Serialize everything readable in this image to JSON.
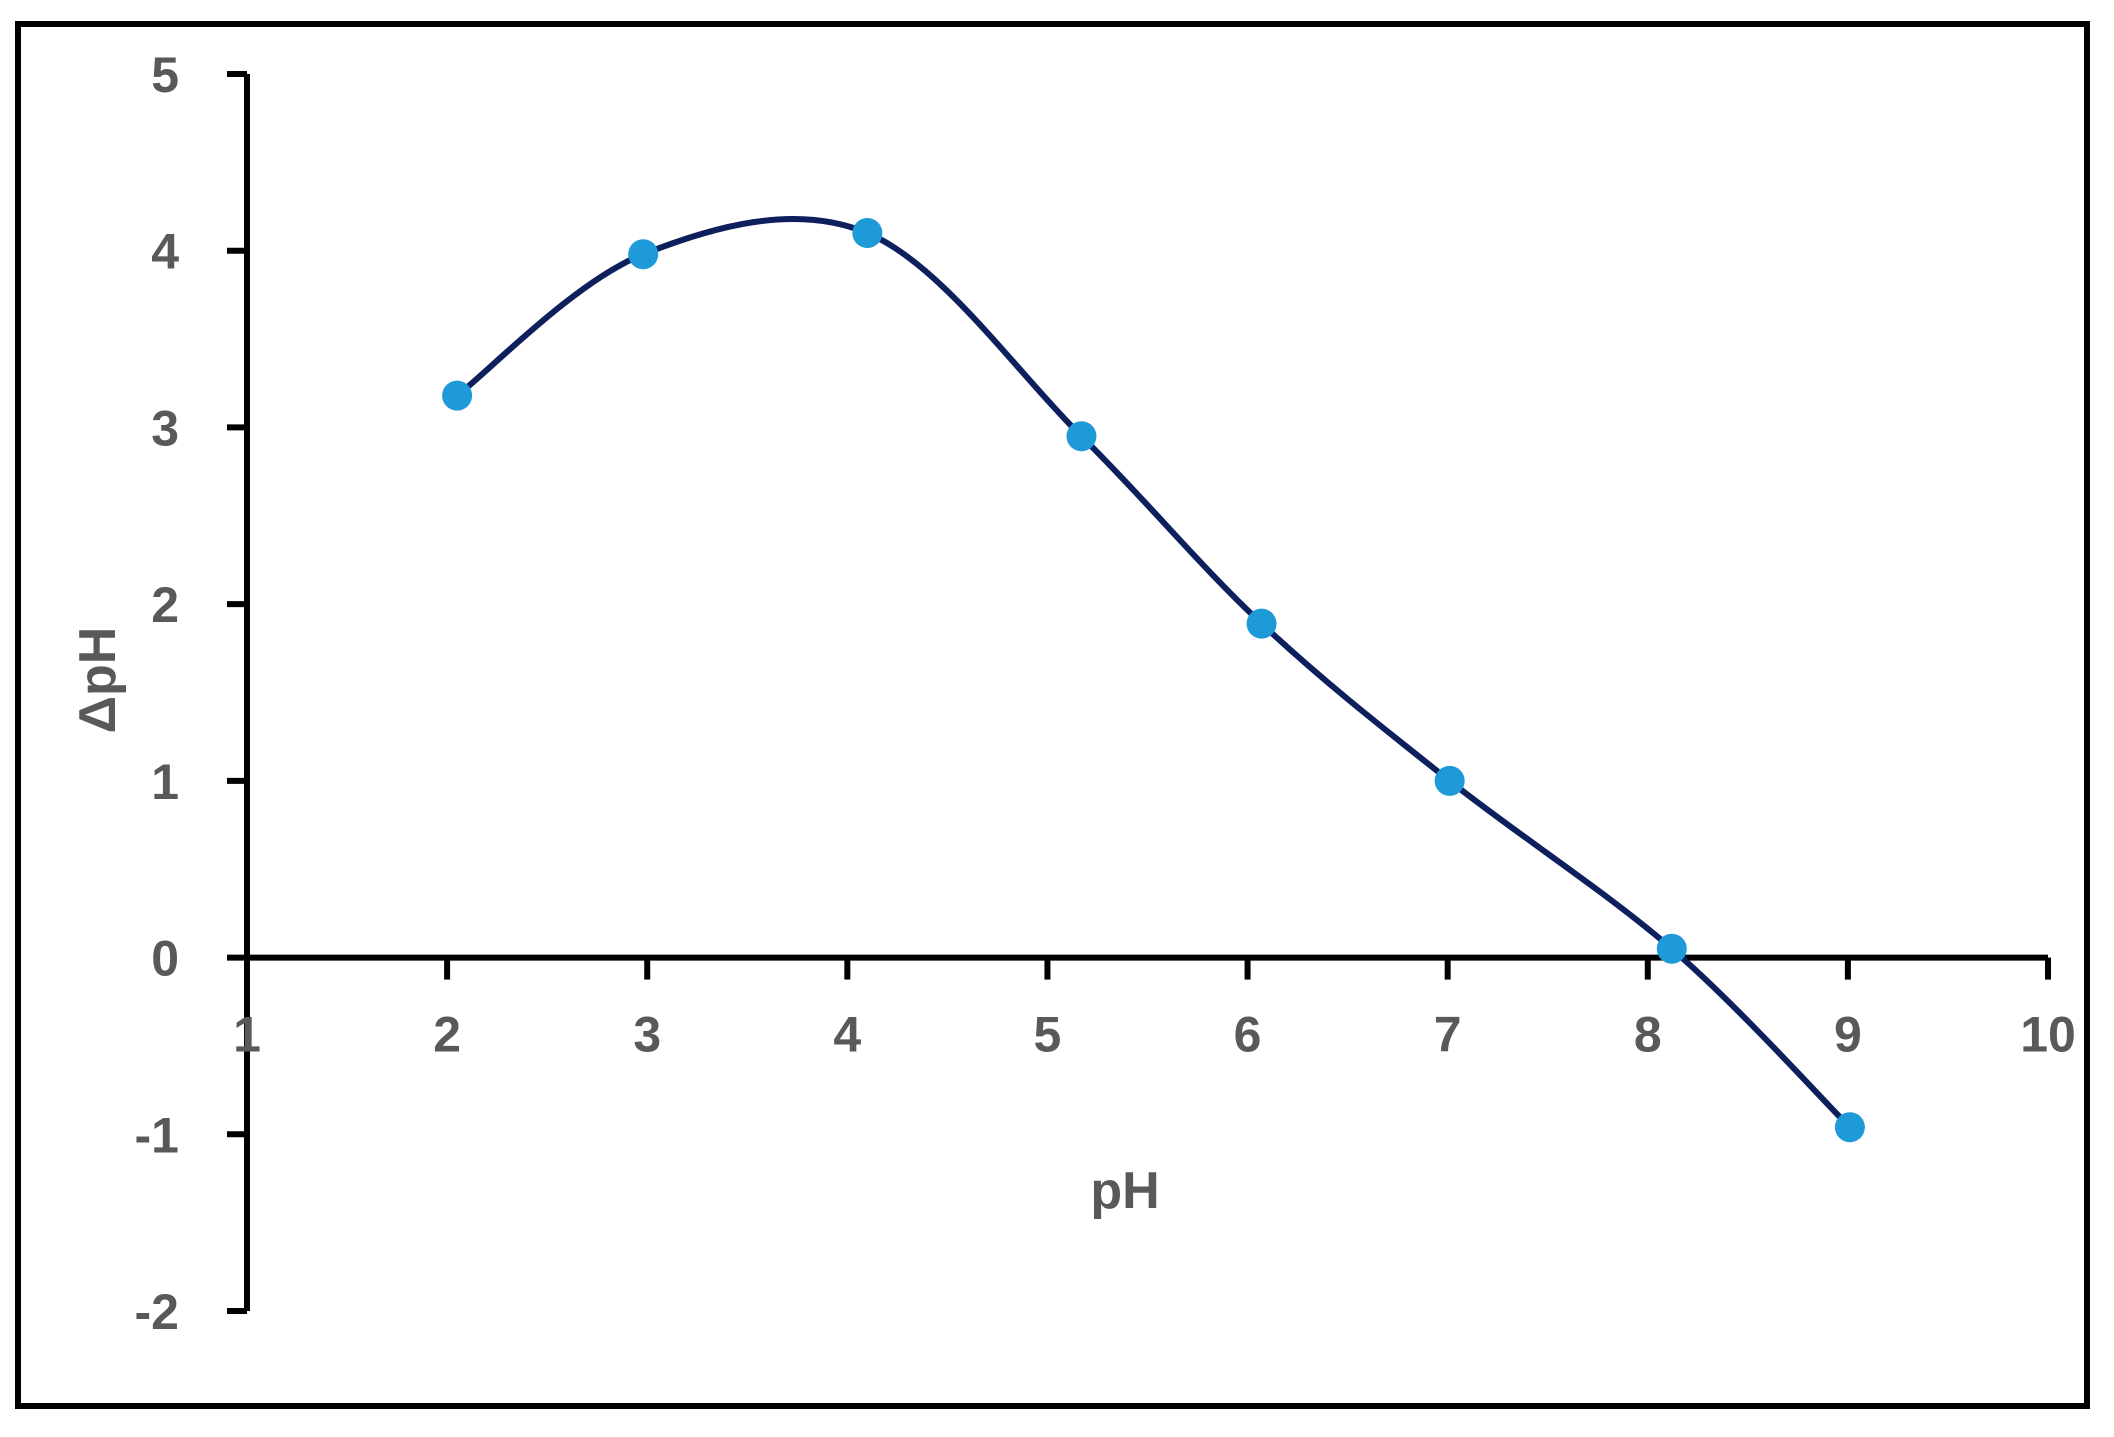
{
  "chart_data": {
    "type": "scatter",
    "xlabel": "pH",
    "ylabel": "ΔpH",
    "xlim": [
      1,
      10
    ],
    "ylim": [
      -2,
      5
    ],
    "xticks": [
      "1",
      "2",
      "3",
      "4",
      "5",
      "6",
      "7",
      "8",
      "9",
      "10"
    ],
    "yticks": [
      "5",
      "4",
      "3",
      "2",
      "1",
      "0",
      "-1",
      "-2"
    ],
    "smooth_line": true,
    "grid": false,
    "series": [
      {
        "x": [
          2.05,
          2.98,
          4.1,
          5.17,
          6.07,
          7.01,
          8.12,
          9.01
        ],
        "y": [
          3.18,
          3.98,
          4.1,
          2.95,
          1.89,
          1.0,
          0.05,
          -0.96
        ]
      }
    ],
    "colors": {
      "line": "#0d1f5c",
      "marker": "#1f9ad8",
      "axis": "#000000",
      "text": "#595959",
      "frame": "#000000"
    }
  }
}
